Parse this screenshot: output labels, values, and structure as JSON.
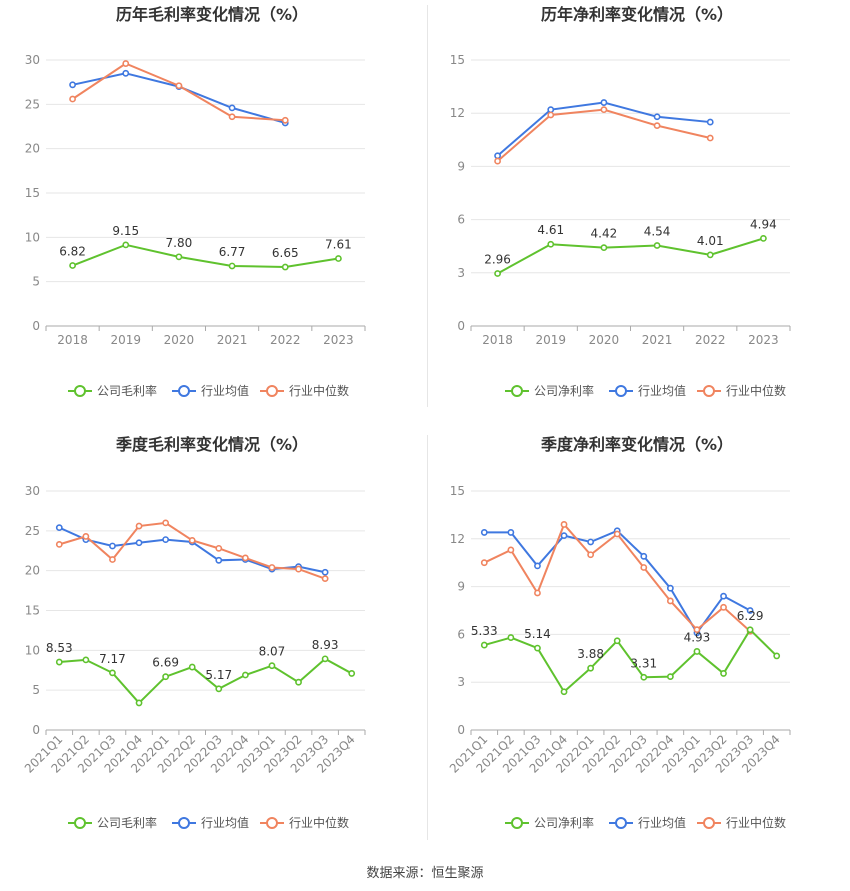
{
  "colors": {
    "company": "#5fc22e",
    "avg": "#3f78e0",
    "median": "#f0845f",
    "grid": "#e6e6e6",
    "axis": "#aaaaaa"
  },
  "source_text": "数据来源：恒生聚源",
  "legends": {
    "gross": [
      "公司毛利率",
      "行业均值",
      "行业中位数"
    ],
    "net": [
      "公司净利率",
      "行业均值",
      "行业中位数"
    ]
  },
  "chart_data": [
    {
      "id": "annual-gross",
      "type": "line",
      "title": "历年毛利率变化情况（%）",
      "categories": [
        "2018",
        "2019",
        "2020",
        "2021",
        "2022",
        "2023"
      ],
      "ylim": [
        0,
        30
      ],
      "yticks": [
        0,
        5,
        10,
        15,
        20,
        25,
        30
      ],
      "grid": true,
      "legend_position": "bottom",
      "series": [
        {
          "name": "公司毛利率",
          "values": [
            6.82,
            9.15,
            7.8,
            6.77,
            6.65,
            7.61
          ],
          "labels": [
            "6.82",
            "9.15",
            "7.80",
            "6.77",
            "6.65",
            "7.61"
          ]
        },
        {
          "name": "行业均值",
          "values": [
            27.2,
            28.5,
            27.0,
            24.6,
            22.9,
            null
          ]
        },
        {
          "name": "行业中位数",
          "values": [
            25.6,
            29.6,
            27.1,
            23.6,
            23.2,
            null
          ]
        }
      ]
    },
    {
      "id": "annual-net",
      "type": "line",
      "title": "历年净利率变化情况（%）",
      "categories": [
        "2018",
        "2019",
        "2020",
        "2021",
        "2022",
        "2023"
      ],
      "ylim": [
        0,
        15
      ],
      "yticks": [
        0,
        3,
        6,
        9,
        12,
        15
      ],
      "grid": true,
      "legend_position": "bottom",
      "series": [
        {
          "name": "公司净利率",
          "values": [
            2.96,
            4.61,
            4.42,
            4.54,
            4.01,
            4.94
          ],
          "labels": [
            "2.96",
            "4.61",
            "4.42",
            "4.54",
            "4.01",
            "4.94"
          ]
        },
        {
          "name": "行业均值",
          "values": [
            9.6,
            12.2,
            12.6,
            11.8,
            11.5,
            null
          ]
        },
        {
          "name": "行业中位数",
          "values": [
            9.3,
            11.9,
            12.2,
            11.3,
            10.6,
            null
          ]
        }
      ]
    },
    {
      "id": "quarterly-gross",
      "type": "line",
      "title": "季度毛利率变化情况（%）",
      "categories": [
        "2021Q1",
        "2021Q2",
        "2021Q3",
        "2021Q4",
        "2022Q1",
        "2022Q2",
        "2022Q3",
        "2022Q4",
        "2023Q1",
        "2023Q2",
        "2023Q3",
        "2023Q4"
      ],
      "ylim": [
        0,
        30
      ],
      "yticks": [
        0,
        5,
        10,
        15,
        20,
        25,
        30
      ],
      "grid": true,
      "legend_position": "bottom",
      "series": [
        {
          "name": "公司毛利率",
          "values": [
            8.53,
            8.8,
            7.17,
            3.4,
            6.69,
            7.9,
            5.17,
            6.9,
            8.07,
            6.0,
            8.93,
            7.1
          ],
          "labels": [
            "8.53",
            "",
            "7.17",
            "",
            "6.69",
            "",
            "5.17",
            "",
            "8.07",
            "",
            "8.93",
            ""
          ]
        },
        {
          "name": "行业均值",
          "values": [
            25.4,
            23.9,
            23.1,
            23.5,
            23.9,
            23.6,
            21.3,
            21.4,
            20.2,
            20.5,
            19.8,
            null
          ]
        },
        {
          "name": "行业中位数",
          "values": [
            23.3,
            24.3,
            21.4,
            25.6,
            26.0,
            23.8,
            22.8,
            21.6,
            20.4,
            20.2,
            19.0,
            null
          ]
        }
      ]
    },
    {
      "id": "quarterly-net",
      "type": "line",
      "title": "季度净利率变化情况（%）",
      "categories": [
        "2021Q1",
        "2021Q2",
        "2021Q3",
        "2021Q4",
        "2022Q1",
        "2022Q2",
        "2022Q3",
        "2022Q4",
        "2023Q1",
        "2023Q2",
        "2023Q3",
        "2023Q4"
      ],
      "ylim": [
        0,
        15
      ],
      "yticks": [
        0,
        3,
        6,
        9,
        12,
        15
      ],
      "grid": true,
      "legend_position": "bottom",
      "series": [
        {
          "name": "公司净利率",
          "values": [
            5.33,
            5.8,
            5.14,
            2.4,
            3.88,
            5.6,
            3.31,
            3.35,
            4.93,
            3.55,
            6.29,
            4.65
          ],
          "labels": [
            "5.33",
            "",
            "5.14",
            "",
            "3.88",
            "",
            "3.31",
            "",
            "4.93",
            "",
            "6.29",
            ""
          ]
        },
        {
          "name": "行业均值",
          "values": [
            12.4,
            12.4,
            10.3,
            12.2,
            11.8,
            12.5,
            10.9,
            8.9,
            6.1,
            8.4,
            7.5,
            null
          ]
        },
        {
          "name": "行业中位数",
          "values": [
            10.5,
            11.3,
            8.6,
            12.9,
            11.0,
            12.3,
            10.2,
            8.1,
            6.3,
            7.7,
            6.2,
            null
          ]
        }
      ]
    }
  ]
}
